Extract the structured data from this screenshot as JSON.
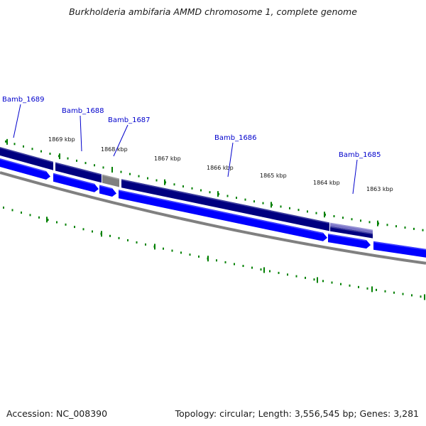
{
  "title": "Burkholderia ambifaria AMMD chromosome 1, complete genome",
  "footer": {
    "accession": "Accession: NC_008390",
    "stats": "Topology: circular; Length: 3,556,545 bp; Genes: 3,281"
  },
  "colors": {
    "forward_cds": "#000080",
    "reverse_cds": "#0000ff",
    "gray_feature": "#808080",
    "rna_feature": "#7a74c8",
    "backbone": "#808080",
    "tick": "#008000",
    "gene_label": "#0000cc"
  },
  "kbp_ticks": [
    {
      "label": "1869 kbp"
    },
    {
      "label": "1868 kbp"
    },
    {
      "label": "1867 kbp"
    },
    {
      "label": "1866 kbp"
    },
    {
      "label": "1865 kbp"
    },
    {
      "label": "1864 kbp"
    },
    {
      "label": "1863 kbp"
    }
  ],
  "gene_labels": [
    {
      "name": "Bamb_1689"
    },
    {
      "name": "Bamb_1688"
    },
    {
      "name": "Bamb_1687"
    },
    {
      "name": "Bamb_1686"
    },
    {
      "name": "Bamb_1685"
    }
  ]
}
